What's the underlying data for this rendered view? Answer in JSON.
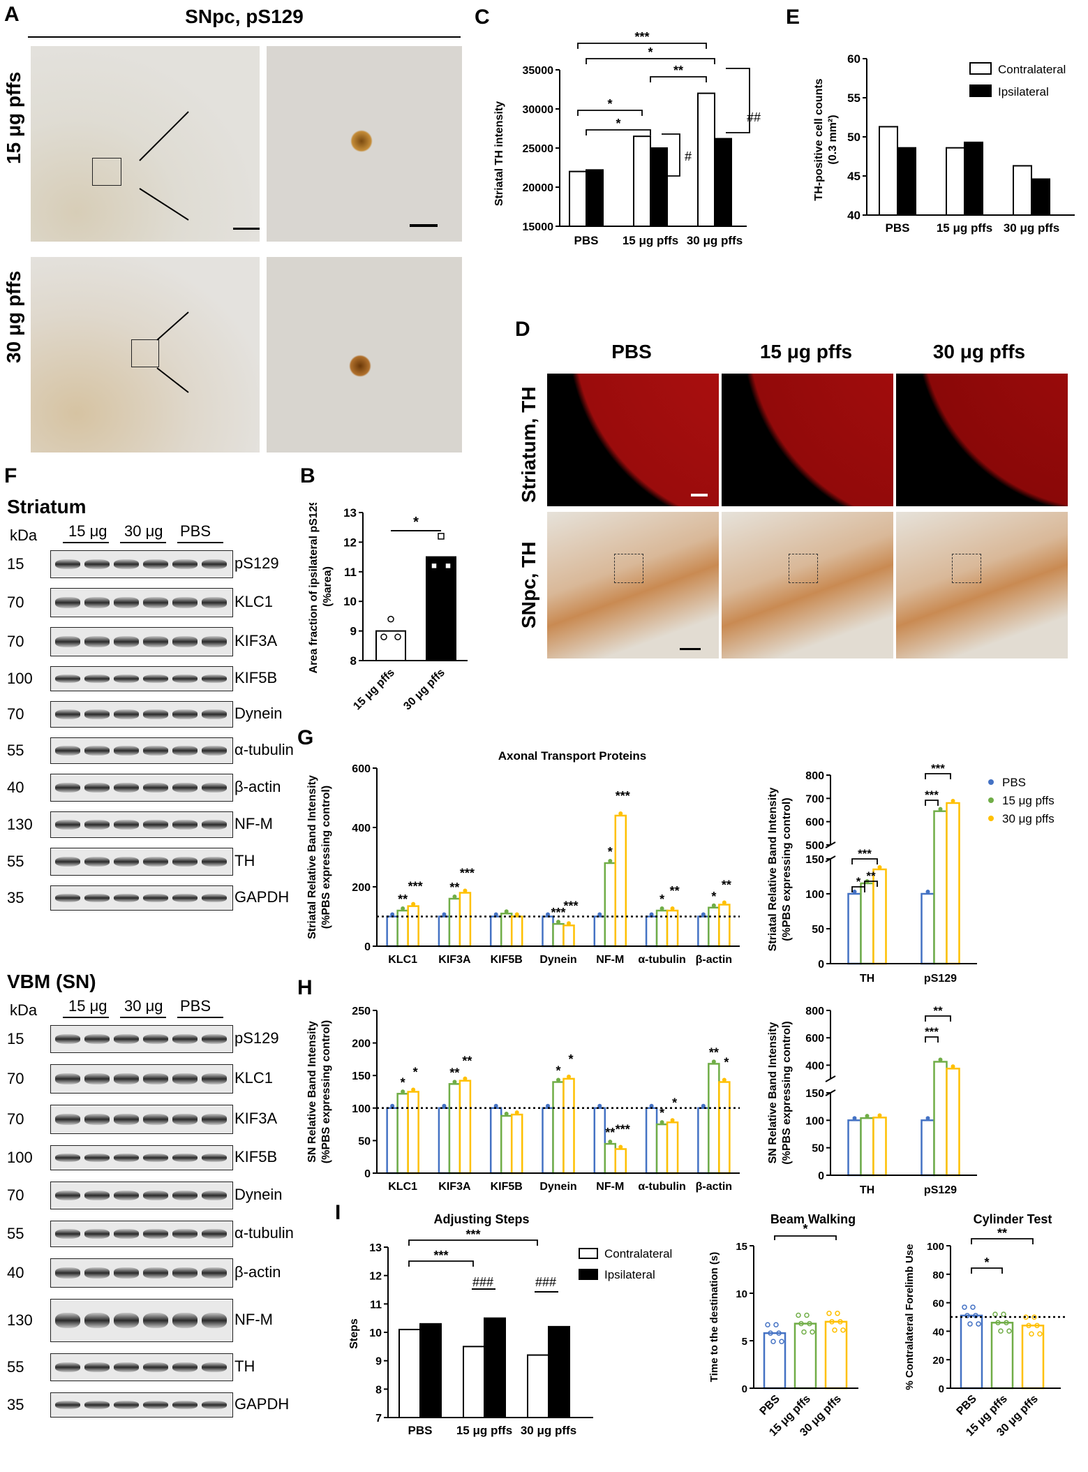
{
  "panels": {
    "A": {
      "label": "A",
      "title": "SNpc, pS129",
      "rows": [
        "15 μg pffs",
        "30 μg pffs"
      ]
    },
    "B": {
      "label": "B"
    },
    "C": {
      "label": "C"
    },
    "D": {
      "label": "D",
      "cols": [
        "PBS",
        "15 μg pffs",
        "30 μg pffs"
      ],
      "rows": [
        "Striatum, TH",
        "SNpc, TH"
      ]
    },
    "E": {
      "label": "E"
    },
    "F": {
      "label": "F"
    },
    "G": {
      "label": "G"
    },
    "H": {
      "label": "H"
    },
    "I": {
      "label": "I"
    }
  },
  "blots": {
    "striatum": {
      "title": "Striatum",
      "kda": "kDa",
      "lanes": [
        "15 μg",
        "30 μg",
        "PBS"
      ],
      "rows": [
        {
          "kda": "15",
          "name": "pS129"
        },
        {
          "kda": "70",
          "name": "KLC1"
        },
        {
          "kda": "70",
          "name": "KIF3A"
        },
        {
          "kda": "100",
          "name": "KIF5B"
        },
        {
          "kda": "70",
          "name": "Dynein"
        },
        {
          "kda": "55",
          "name": "α-tubulin"
        },
        {
          "kda": "40",
          "name": "β-actin"
        },
        {
          "kda": "130",
          "name": "NF-M"
        },
        {
          "kda": "55",
          "name": "TH"
        },
        {
          "kda": "35",
          "name": "GAPDH"
        }
      ]
    },
    "vbm": {
      "title": "VBM (SN)",
      "kda": "kDa",
      "lanes": [
        "15 μg",
        "30 μg",
        "PBS"
      ],
      "rows": [
        {
          "kda": "15",
          "name": "pS129"
        },
        {
          "kda": "70",
          "name": "KLC1"
        },
        {
          "kda": "70",
          "name": "KIF3A"
        },
        {
          "kda": "100",
          "name": "KIF5B"
        },
        {
          "kda": "70",
          "name": "Dynein"
        },
        {
          "kda": "55",
          "name": "α-tubulin"
        },
        {
          "kda": "40",
          "name": "β-actin"
        },
        {
          "kda": "130",
          "name": "NF-M"
        },
        {
          "kda": "55",
          "name": "TH"
        },
        {
          "kda": "35",
          "name": "GAPDH"
        }
      ]
    }
  },
  "chart_data": [
    {
      "id": "B",
      "type": "bar",
      "categories": [
        "15 μg pffs",
        "30 μg pffs"
      ],
      "values": [
        9.0,
        11.5
      ],
      "ylabel": "Area fraction of ipsilateral pS129 (%area)",
      "ylim": [
        8,
        13
      ],
      "yticks": [
        8,
        9,
        10,
        11,
        12,
        13
      ],
      "points": [
        [
          8.8,
          9.4,
          8.8
        ],
        [
          11.2,
          12.2,
          11.2
        ]
      ],
      "sig": "*",
      "colors": [
        "#ffffff",
        "#000000"
      ]
    },
    {
      "id": "C",
      "type": "bar",
      "categories": [
        "PBS",
        "15 μg pffs",
        "30 μg pffs"
      ],
      "series": [
        {
          "name": "Contralateral",
          "values": [
            22000,
            26500,
            32000
          ]
        },
        {
          "name": "Ipsilateral",
          "values": [
            22200,
            25000,
            26200
          ]
        }
      ],
      "ylabel": "Striatal TH intensity",
      "ylim": [
        15000,
        35000
      ],
      "yticks": [
        15000,
        20000,
        25000,
        30000,
        35000
      ],
      "sig": [
        "***",
        "*",
        "**",
        "*",
        "*",
        "#",
        "##"
      ]
    },
    {
      "id": "E",
      "type": "bar",
      "categories": [
        "PBS",
        "15 μg pffs",
        "30 μg pffs"
      ],
      "series": [
        {
          "name": "Contralateral",
          "values": [
            51.3,
            48.6,
            46.3
          ]
        },
        {
          "name": "Ipsilateral",
          "values": [
            48.6,
            49.3,
            44.6
          ]
        }
      ],
      "ylabel": "TH-positive cell counts (0.3 mm²)",
      "ylim": [
        40,
        60
      ],
      "yticks": [
        40,
        45,
        50,
        55,
        60
      ],
      "legend": "top-right"
    },
    {
      "id": "G-left",
      "type": "bar",
      "title": "Axonal Transport Proteins",
      "categories": [
        "KLC1",
        "KIF3A",
        "KIF5B",
        "Dynein",
        "NF-M",
        "α-tubulin",
        "β-actin"
      ],
      "series": [
        {
          "name": "PBS",
          "values": [
            100,
            100,
            100,
            100,
            100,
            100,
            100
          ]
        },
        {
          "name": "15 μg pffs",
          "values": [
            120,
            160,
            110,
            75,
            280,
            120,
            130
          ]
        },
        {
          "name": "30 μg pffs",
          "values": [
            135,
            180,
            100,
            70,
            440,
            120,
            140
          ]
        }
      ],
      "ylabel": "Striatal Relative Band Intensity (%PBS expressing control)",
      "ylim": [
        0,
        600
      ],
      "yticks": [
        0,
        200,
        400,
        600
      ],
      "sig15": [
        "**",
        "**",
        "",
        "***",
        "*",
        "*",
        "*"
      ],
      "sig30": [
        "***",
        "***",
        "",
        "***",
        "***",
        "**",
        "**"
      ]
    },
    {
      "id": "G-right",
      "type": "bar",
      "categories": [
        "TH",
        "pS129"
      ],
      "series": [
        {
          "name": "PBS",
          "values": [
            100,
            100
          ]
        },
        {
          "name": "15 μg pffs",
          "values": [
            115,
            645
          ]
        },
        {
          "name": "30 μg pffs",
          "values": [
            135,
            680
          ]
        }
      ],
      "ylabel": "Striatal Relative Band Intensity (%PBS expressing control)",
      "yticks_low": [
        0,
        50,
        100,
        150
      ],
      "yticks_high": [
        500,
        600,
        700,
        800
      ],
      "legend": "top-right"
    },
    {
      "id": "H-left",
      "type": "bar",
      "categories": [
        "KLC1",
        "KIF3A",
        "KIF5B",
        "Dynein",
        "NF-M",
        "α-tubulin",
        "β-actin"
      ],
      "series": [
        {
          "name": "PBS",
          "values": [
            100,
            100,
            100,
            100,
            100,
            100,
            100
          ]
        },
        {
          "name": "15 μg pffs",
          "values": [
            122,
            137,
            88,
            140,
            45,
            75,
            168
          ]
        },
        {
          "name": "30 μg pffs",
          "values": [
            125,
            142,
            90,
            145,
            37,
            78,
            140
          ]
        }
      ],
      "ylabel": "SN Relative Band Intensity (%PBS expressing control)",
      "ylim": [
        0,
        250
      ],
      "yticks": [
        0,
        50,
        100,
        150,
        200,
        250
      ],
      "sig15": [
        "*",
        "**",
        "",
        "*",
        "**",
        "*",
        "**"
      ],
      "sig30": [
        "*",
        "**",
        "",
        "*",
        "***",
        "*",
        "*"
      ]
    },
    {
      "id": "H-right",
      "type": "bar",
      "categories": [
        "TH",
        "pS129"
      ],
      "series": [
        {
          "name": "PBS",
          "values": [
            100,
            100
          ]
        },
        {
          "name": "15 μg pffs",
          "values": [
            104,
            425
          ]
        },
        {
          "name": "30 μg pffs",
          "values": [
            105,
            375
          ]
        }
      ],
      "ylabel": "SN Relative Band Intensity (%PBS expressing control)",
      "yticks_low": [
        0,
        50,
        100,
        150
      ],
      "yticks_high": [
        400,
        600,
        800
      ]
    },
    {
      "id": "I-adj",
      "type": "bar",
      "title": "Adjusting Steps",
      "categories": [
        "PBS",
        "15 μg pffs",
        "30 μg pffs"
      ],
      "series": [
        {
          "name": "Contralateral",
          "values": [
            10.1,
            9.5,
            9.2
          ]
        },
        {
          "name": "Ipsilateral",
          "values": [
            10.3,
            10.5,
            10.2
          ]
        }
      ],
      "ylabel": "Steps",
      "ylim": [
        7,
        13
      ],
      "yticks": [
        7,
        8,
        9,
        10,
        11,
        12,
        13
      ],
      "sig": [
        "***",
        "***",
        "###",
        "###"
      ]
    },
    {
      "id": "I-beam",
      "type": "bar",
      "title": "Beam Walking",
      "categories": [
        "PBS",
        "15 μg pffs",
        "30 μg pffs"
      ],
      "values": [
        5.8,
        6.8,
        7.0
      ],
      "ylabel": "Time to the destination (s)",
      "ylim": [
        0,
        15
      ],
      "yticks": [
        0,
        5,
        10,
        15
      ],
      "sig": "*"
    },
    {
      "id": "I-cyl",
      "type": "bar",
      "title": "Cylinder Test",
      "categories": [
        "PBS",
        "15 μg pffs",
        "30 μg pffs"
      ],
      "values": [
        51,
        46,
        44
      ],
      "ylabel": "% Contralateral Forelimb Use",
      "ylim": [
        0,
        100
      ],
      "yticks": [
        0,
        20,
        40,
        60,
        80,
        100
      ],
      "sig": [
        "*",
        "**"
      ]
    }
  ],
  "colors": {
    "pbs": "#4472c4",
    "pffs15": "#70ad47",
    "pffs30": "#ffc000",
    "stain_bg": "#d8d4cc",
    "red": "#d01010",
    "dab": "#b8641c"
  }
}
